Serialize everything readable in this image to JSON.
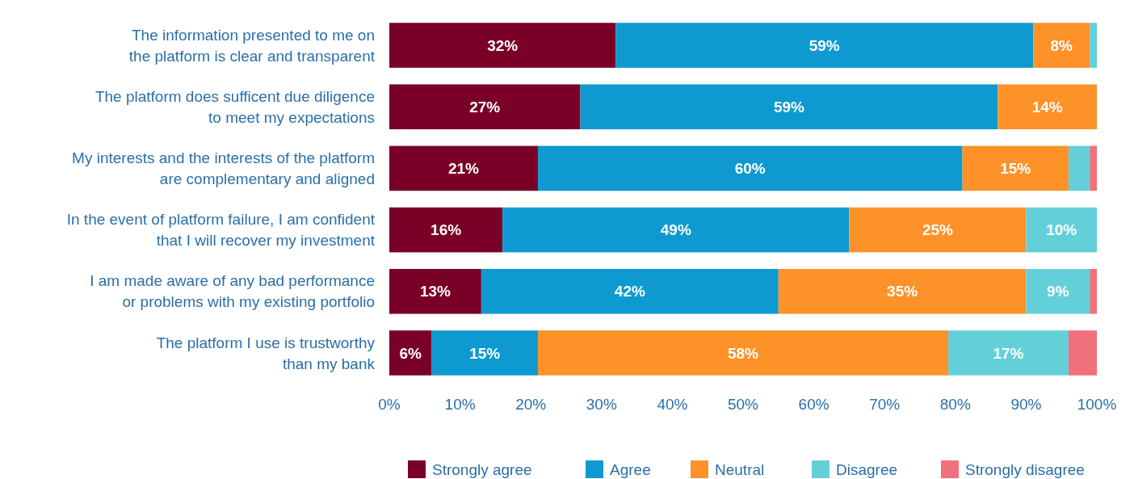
{
  "chart_data": {
    "type": "bar",
    "orientation": "horizontal",
    "stacked": true,
    "categories": [
      "The information presented to me on\nthe platform is clear and transparent",
      "The platform does sufficent due diligence\nto meet my expectations",
      "My interests and the interests of the platform\nare complementary and aligned",
      "In the event of platform failure, I am confident\nthat I will recover my investment",
      "I am made aware of any bad performance\nor problems with my existing portfolio",
      "The platform I use is trustworthy\nthan my bank"
    ],
    "series": [
      {
        "name": "Strongly agree",
        "color": "#7b0028",
        "values": [
          32,
          27,
          21,
          16,
          13,
          6
        ],
        "value_labels": [
          "32%",
          "27%",
          "21%",
          "16%",
          "13%",
          "6%"
        ]
      },
      {
        "name": "Agree",
        "color": "#0e9ad1",
        "values": [
          59,
          59,
          60,
          49,
          42,
          15
        ],
        "value_labels": [
          "59%",
          "59%",
          "60%",
          "49%",
          "42%",
          "15%"
        ]
      },
      {
        "name": "Neutral",
        "color": "#fd9229",
        "values": [
          8,
          14,
          15,
          25,
          35,
          58
        ],
        "value_labels": [
          "8%",
          "14%",
          "15%",
          "25%",
          "35%",
          "58%"
        ]
      },
      {
        "name": "Disagree",
        "color": "#63d0d9",
        "values": [
          1,
          0,
          3,
          10,
          9,
          17
        ],
        "value_labels": [
          null,
          null,
          null,
          "10%",
          "9%",
          "17%"
        ]
      },
      {
        "name": "Strongly disagree",
        "color": "#f0707c",
        "values": [
          0,
          0,
          1,
          0,
          1,
          4
        ],
        "value_labels": [
          null,
          null,
          null,
          null,
          null,
          null
        ]
      }
    ],
    "xlim": [
      0,
      100
    ],
    "xticks": [
      {
        "value": 0,
        "label": "0%"
      },
      {
        "value": 10,
        "label": "10%"
      },
      {
        "value": 20,
        "label": "20%"
      },
      {
        "value": 30,
        "label": "30%"
      },
      {
        "value": 40,
        "label": "40%"
      },
      {
        "value": 50,
        "label": "50%"
      },
      {
        "value": 60,
        "label": "60%"
      },
      {
        "value": 70,
        "label": "70%"
      },
      {
        "value": 80,
        "label": "80%"
      },
      {
        "value": 90,
        "label": "90%"
      },
      {
        "value": 100,
        "label": "100%"
      }
    ],
    "grid": false,
    "legend": "bottom"
  }
}
